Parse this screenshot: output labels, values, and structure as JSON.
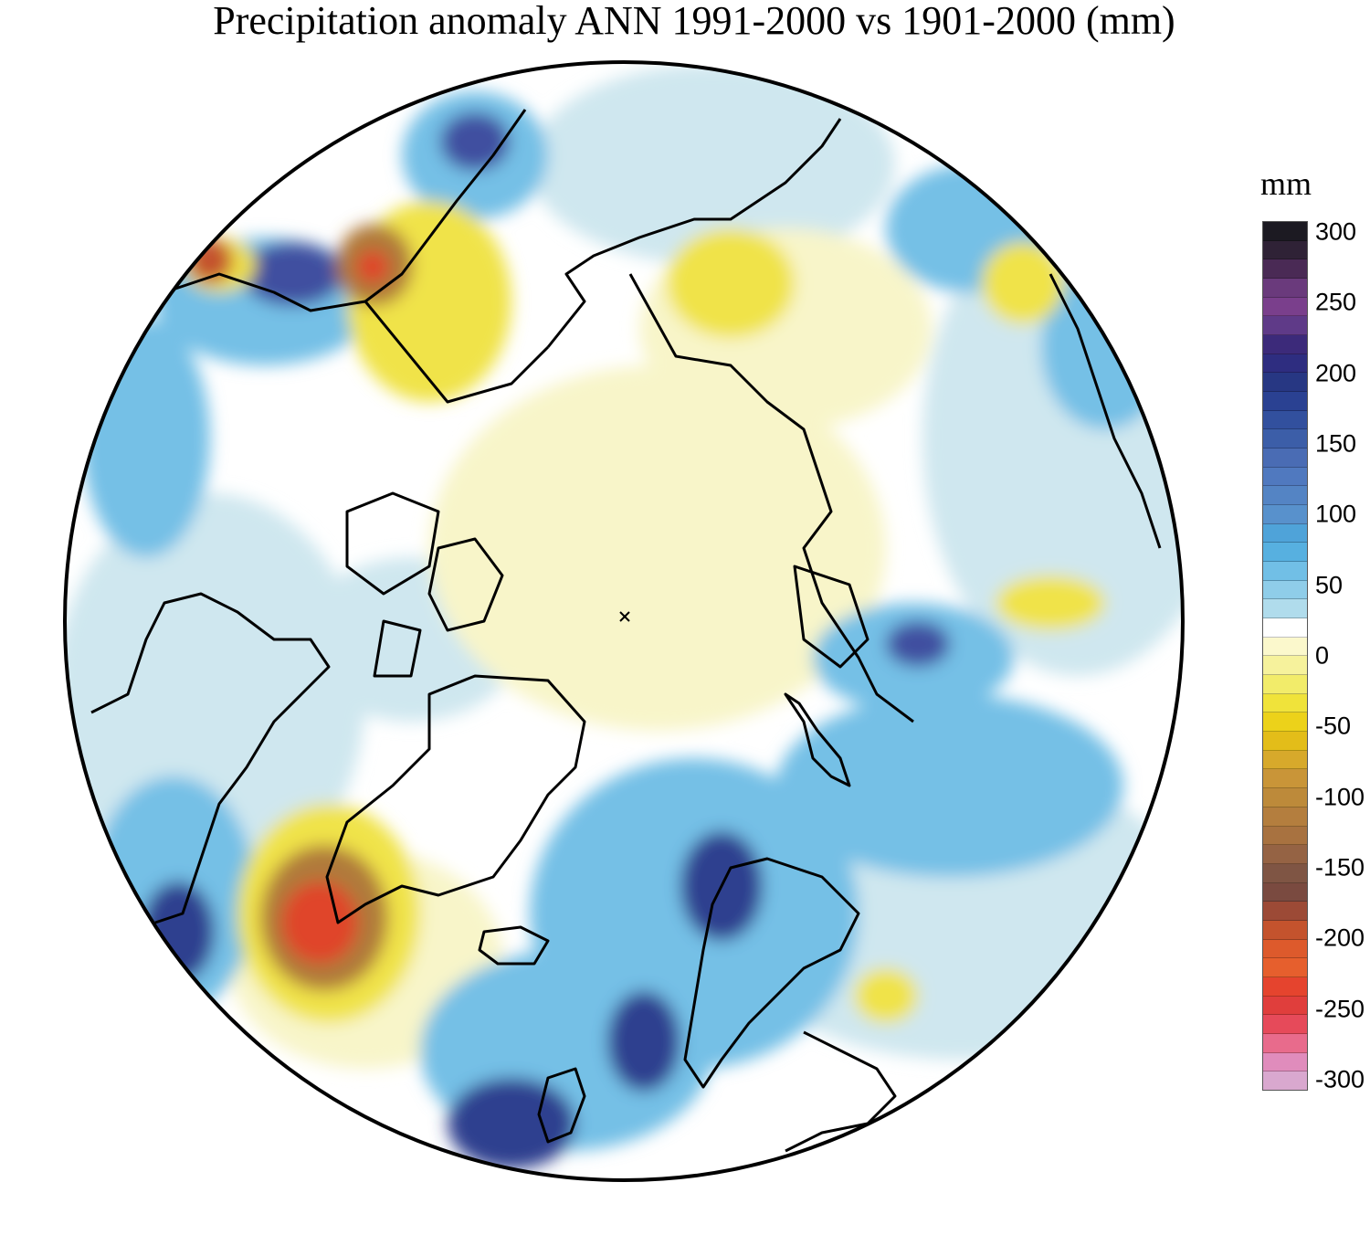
{
  "title": "Precipitation anomaly ANN 1991-2000 vs 1901-2000 (mm)",
  "colorbar": {
    "unit": "mm",
    "ticks": [
      "300",
      "250",
      "200",
      "150",
      "100",
      "50",
      "0",
      "-50",
      "-100",
      "-150",
      "-200",
      "-250",
      "-300"
    ],
    "colors_top_to_bottom": [
      "#1c1a22",
      "#2f2236",
      "#4a2a55",
      "#6a3a7c",
      "#7a3f8c",
      "#5f3a88",
      "#3c2a7a",
      "#2e2d80",
      "#273783",
      "#2a4192",
      "#32509e",
      "#3c5ea8",
      "#4a6cb4",
      "#5079bf",
      "#5484c4",
      "#5891cc",
      "#4fa3d9",
      "#57b0e0",
      "#71bfe6",
      "#8fcde9",
      "#b0dcec",
      "#ffffff",
      "#fbf8cc",
      "#f6f29c",
      "#f2ec6a",
      "#f0e33a",
      "#ecd21a",
      "#e3bd19",
      "#d7a92b",
      "#c99538",
      "#bd8a3a",
      "#b47e3e",
      "#a87240",
      "#956344",
      "#7f5544",
      "#7a4a40",
      "#9c4a36",
      "#c4532d",
      "#dd5a2c",
      "#e65f2d",
      "#e5442e",
      "#e03e3c",
      "#e64a5a",
      "#e86b8c",
      "#e08cbc",
      "#d9a8cf"
    ]
  },
  "map": {
    "projection": "north-polar-stereographic",
    "fill_colors": {
      "ocean_base": "#ffffff",
      "light_blue": "#cfe7ef",
      "mid_blue": "#74c0e6",
      "dark_blue": "#2f3f8f",
      "light_yellow": "#f8f5c9",
      "yellow": "#f0e34a",
      "brown": "#b07a3a",
      "red": "#e0442c",
      "coast": "#000000"
    }
  }
}
